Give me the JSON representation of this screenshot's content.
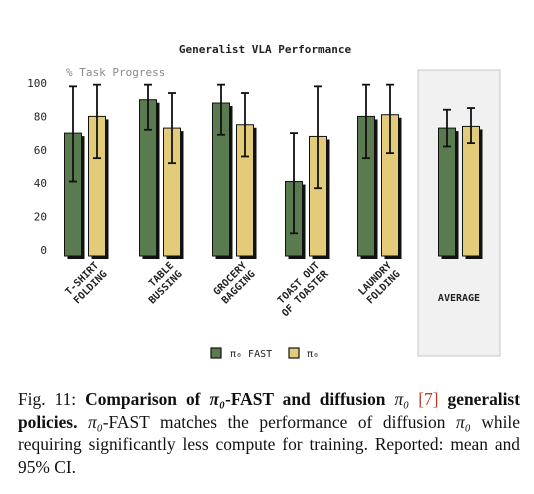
{
  "chart_data": {
    "type": "bar",
    "title": "Generalist VLA Performance",
    "ylabel": "% Task Progress",
    "ylim": [
      0,
      100
    ],
    "yticks": [
      0,
      20,
      40,
      60,
      80,
      100
    ],
    "categories": [
      "T-SHIRT\nFOLDING",
      "TABLE\nBUSSING",
      "GROCERY\nBAGGING",
      "TOAST OUT\nOF TOASTER",
      "LAUNDRY\nFOLDING",
      "AVERAGE"
    ],
    "series": [
      {
        "name": "π₀ FAST",
        "color": "#5a7a50",
        "values": [
          70,
          90,
          88,
          41,
          80,
          73
        ],
        "ci_low": [
          41,
          72,
          69,
          10,
          55,
          62
        ],
        "ci_high": [
          98,
          99,
          99,
          70,
          99,
          84
        ]
      },
      {
        "name": "π₀",
        "color": "#e2cc7a",
        "values": [
          80,
          73,
          75,
          68,
          81,
          74
        ],
        "ci_low": [
          55,
          52,
          56,
          37,
          58,
          64
        ],
        "ci_high": [
          99,
          94,
          94,
          98,
          99,
          85
        ]
      }
    ],
    "highlight_category": "AVERAGE",
    "legend_position": "bottom",
    "grid": false
  },
  "legend": {
    "fast_label": "π₀ FAST",
    "diffusion_label": "π₀"
  },
  "caption": {
    "fig_label": "Fig. 11:",
    "bold_1": "Comparison of",
    "pi_1": "π₀",
    "bold_2": "-FAST and diffusion",
    "pi_2": "π₀",
    "ref": "[7]",
    "bold_3": "generalist policies.",
    "pi_3": "π₀",
    "text_1": "-FAST matches the performance of diffusion",
    "pi_4": "π₀",
    "text_2": "while requiring significantly less compute for training. Reported: mean and 95% CI."
  }
}
